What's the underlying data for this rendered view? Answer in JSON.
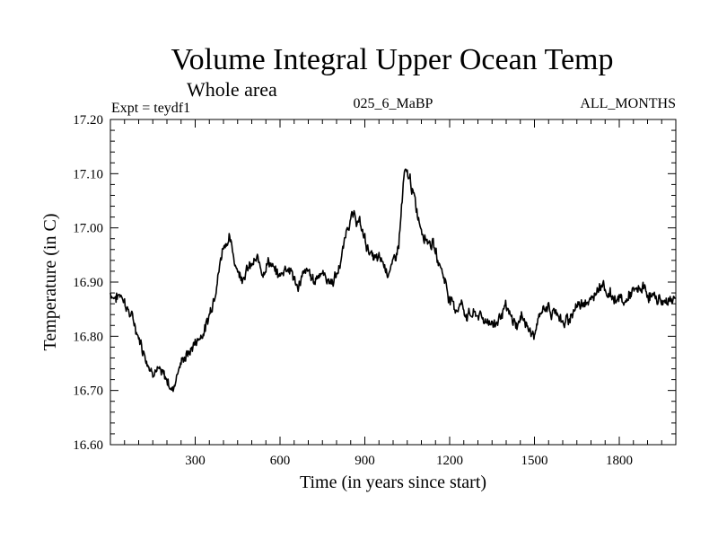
{
  "chart_data": {
    "type": "line",
    "title": "Volume Integral Upper Ocean Temp",
    "subtitle": "Whole area",
    "left_label": "Expt = teydf1",
    "center_label": "025_6_MaBP",
    "right_label": "ALL_MONTHS",
    "xlabel": "Time (in years since start)",
    "ylabel": "Temperature (in C)",
    "xlim": [
      0,
      2000
    ],
    "ylim": [
      16.6,
      17.2
    ],
    "x_ticks": [
      300,
      600,
      900,
      1200,
      1500,
      1800
    ],
    "y_ticks": [
      "16.60",
      "16.70",
      "16.80",
      "16.90",
      "17.00",
      "17.10",
      "17.20"
    ],
    "line_color": "#000000",
    "series": [
      {
        "name": "Volume Integral Upper Ocean Temp",
        "x": [
          0,
          20,
          40,
          60,
          80,
          100,
          120,
          140,
          160,
          180,
          200,
          220,
          240,
          260,
          280,
          300,
          320,
          340,
          360,
          380,
          400,
          420,
          440,
          460,
          480,
          500,
          520,
          540,
          560,
          580,
          600,
          620,
          640,
          660,
          680,
          700,
          720,
          740,
          760,
          780,
          800,
          820,
          840,
          860,
          880,
          900,
          920,
          940,
          960,
          980,
          1000,
          1020,
          1040,
          1060,
          1080,
          1100,
          1120,
          1140,
          1160,
          1180,
          1200,
          1220,
          1240,
          1260,
          1280,
          1300,
          1320,
          1340,
          1360,
          1380,
          1400,
          1420,
          1440,
          1460,
          1480,
          1500,
          1520,
          1540,
          1560,
          1580,
          1600,
          1620,
          1640,
          1660,
          1680,
          1700,
          1720,
          1740,
          1760,
          1780,
          1800,
          1820,
          1840,
          1860,
          1880,
          1900,
          1920,
          1940,
          1960,
          1980,
          2000
        ],
        "values": [
          16.88,
          16.87,
          16.88,
          16.85,
          16.83,
          16.8,
          16.77,
          16.74,
          16.74,
          16.73,
          16.72,
          16.7,
          16.74,
          16.76,
          16.77,
          16.79,
          16.8,
          16.82,
          16.86,
          16.91,
          16.97,
          16.98,
          16.94,
          16.91,
          16.92,
          16.93,
          16.94,
          16.92,
          16.94,
          16.92,
          16.91,
          16.93,
          16.92,
          16.89,
          16.91,
          16.92,
          16.9,
          16.92,
          16.91,
          16.9,
          16.91,
          16.95,
          17.01,
          17.02,
          17.01,
          16.98,
          16.95,
          16.94,
          16.94,
          16.92,
          16.93,
          16.97,
          17.1,
          17.09,
          17.04,
          17.0,
          16.98,
          16.97,
          16.94,
          16.91,
          16.87,
          16.85,
          16.86,
          16.84,
          16.84,
          16.84,
          16.83,
          16.83,
          16.82,
          16.84,
          16.85,
          16.83,
          16.82,
          16.84,
          16.81,
          16.8,
          16.84,
          16.86,
          16.84,
          16.85,
          16.82,
          16.83,
          16.85,
          16.86,
          16.87,
          16.86,
          16.89,
          16.9,
          16.88,
          16.87,
          16.87,
          16.86,
          16.88,
          16.88,
          16.89,
          16.88,
          16.87,
          16.87,
          16.86,
          16.87,
          16.87
        ]
      }
    ]
  }
}
